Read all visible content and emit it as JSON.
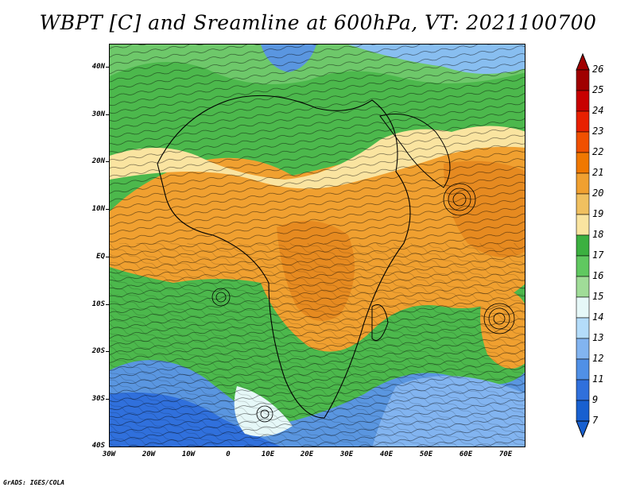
{
  "title": "WBPT [C] and Sreamline at 600hPa, VT: 2021100700",
  "credit": "GrADS: IGES/COLA",
  "map": {
    "lon_range": [
      -30,
      75
    ],
    "lat_range": [
      -40,
      45
    ],
    "lon_ticks": [
      "30W",
      "20W",
      "10W",
      "0",
      "10E",
      "20E",
      "30E",
      "40E",
      "50E",
      "60E",
      "70E"
    ],
    "lat_ticks": [
      "40N",
      "30N",
      "20N",
      "10N",
      "EQ",
      "10S",
      "20S",
      "30S",
      "40S"
    ]
  },
  "colorbar": {
    "labels": [
      "26",
      "25",
      "24",
      "23",
      "22",
      "21",
      "20",
      "19",
      "18",
      "17",
      "16",
      "15",
      "14",
      "13",
      "12",
      "11",
      "9",
      "7"
    ],
    "colors": [
      "#a00000",
      "#c80000",
      "#e82000",
      "#f05000",
      "#f07800",
      "#f0a030",
      "#f0c060",
      "#fae4a0",
      "#3cb040",
      "#60c860",
      "#a0dc98",
      "#e6f8f8",
      "#b4dcfa",
      "#82b4f0",
      "#5090e6",
      "#3070dc",
      "#1860d0"
    ]
  }
}
